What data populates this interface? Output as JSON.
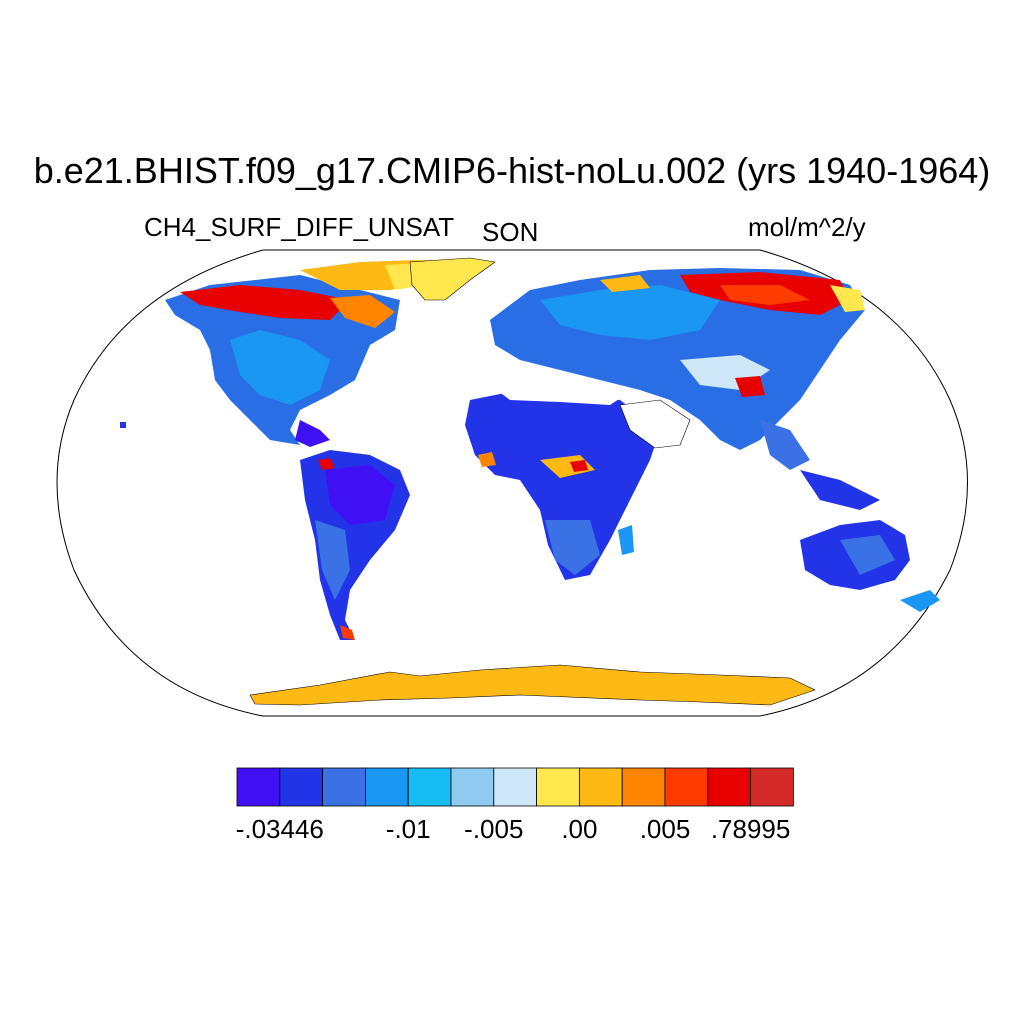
{
  "title": "b.e21.BHIST.f09_g17.CMIP6-hist-noLu.002 (yrs 1940-1964)",
  "left_subtitle": "CH4_SURF_DIFF_UNSAT",
  "center_subtitle": "SON",
  "right_subtitle": "mol/m^2/y",
  "colorbar": {
    "colors": [
      "#4010f5",
      "#2233e8",
      "#3a72e6",
      "#1a96f3",
      "#18bcf5",
      "#8fcaf0",
      "#cde6f8",
      "#ffe74d",
      "#ffb914",
      "#ff8500",
      "#ff3b00",
      "#e80000",
      "#d42a2a"
    ],
    "labels": [
      {
        "text": "-.03446",
        "boundary": 1
      },
      {
        "text": "-.01",
        "boundary": 4
      },
      {
        "text": "-.005",
        "boundary": 6
      },
      {
        "text": ".00",
        "boundary": 8
      },
      {
        "text": ".005",
        "boundary": 10
      },
      {
        "text": ".78995",
        "boundary": 12
      }
    ]
  }
}
